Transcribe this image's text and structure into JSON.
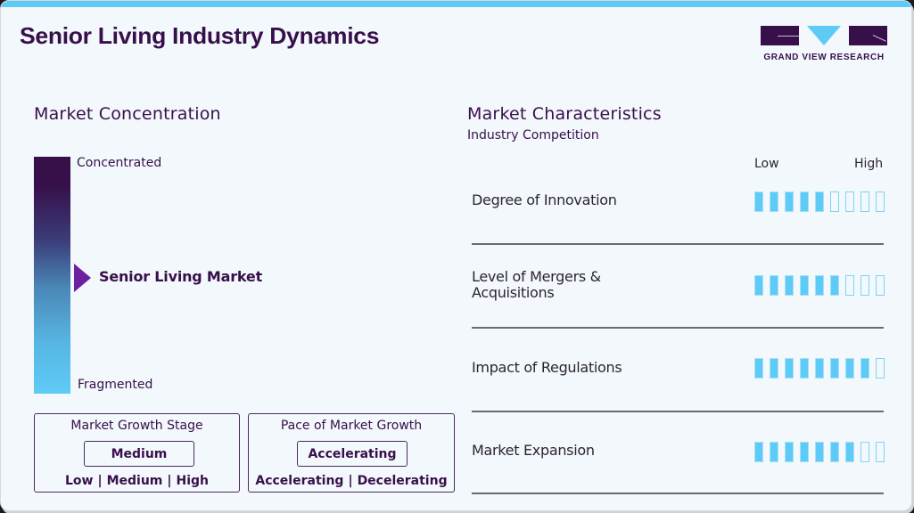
{
  "header": {
    "title": "Senior Living Industry Dynamics",
    "logo_text": "GRAND VIEW RESEARCH",
    "accent_color": "#5ecbf6",
    "brand_color": "#37104a"
  },
  "market_concentration": {
    "heading": "Market Concentration",
    "top_label": "Concentrated",
    "bottom_label": "Fragmented",
    "marker_label": "Senior Living Market",
    "marker_color": "#6a22a0"
  },
  "growth_stage": {
    "title": "Market Growth Stage",
    "value": "Medium",
    "options": [
      "Low",
      "Medium",
      "High"
    ]
  },
  "growth_pace": {
    "title": "Pace of Market Growth",
    "value": "Accelerating",
    "options": [
      "Accelerating",
      "Decelerating"
    ]
  },
  "market_characteristics": {
    "heading": "Market Characteristics",
    "subheading": "Industry Competition",
    "scale_low": "Low",
    "scale_high": "High",
    "max_segments": 9,
    "rows": [
      {
        "label_line1": "Degree of Innovation",
        "label_line2": "",
        "filled": 5
      },
      {
        "label_line1": "Level of Mergers &",
        "label_line2": "Acquisitions",
        "filled": 6
      },
      {
        "label_line1": "Impact of Regulations",
        "label_line2": "",
        "filled": 8
      },
      {
        "label_line1": "Market Expansion",
        "label_line2": "",
        "filled": 7
      }
    ]
  },
  "chart_data": {
    "type": "table",
    "title": "Senior Living Industry Dynamics",
    "market_concentration": {
      "position": "Senior Living Market",
      "scale": [
        "Fragmented",
        "Concentrated"
      ],
      "relative_position": 0.52
    },
    "market_growth_stage": "Medium",
    "pace_of_market_growth": "Accelerating",
    "categories": [
      "Degree of Innovation",
      "Level of Mergers & Acquisitions",
      "Impact of Regulations",
      "Market Expansion"
    ],
    "values": [
      5,
      6,
      8,
      7
    ],
    "scale_max": 9,
    "scale_labels": [
      "Low",
      "High"
    ]
  }
}
